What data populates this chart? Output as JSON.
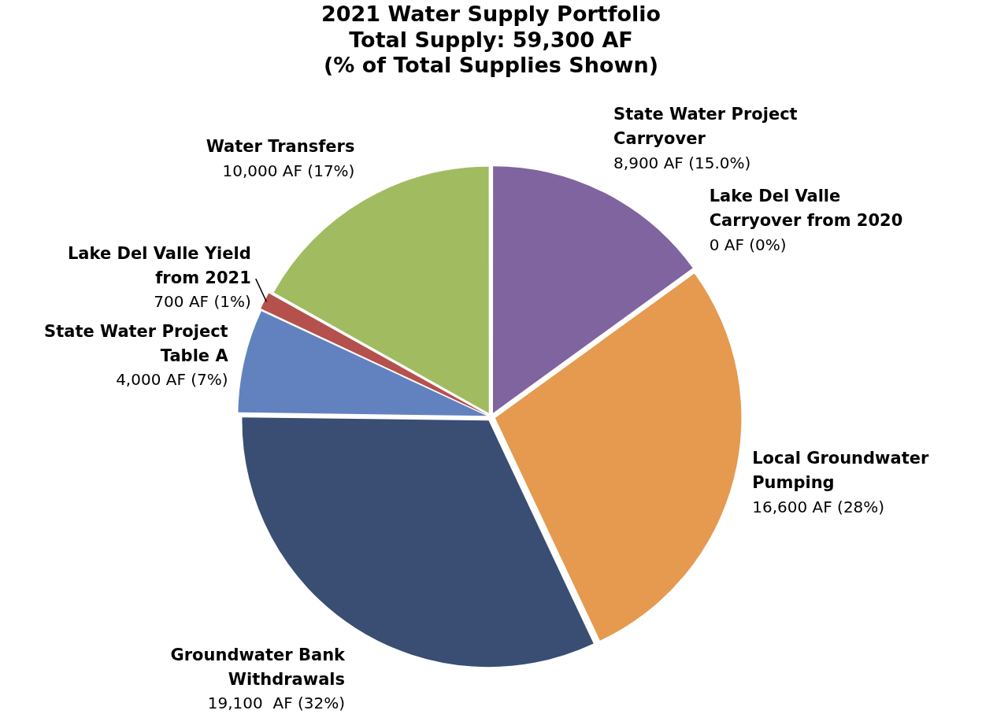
{
  "chart_data": {
    "type": "pie",
    "title": "2021 Water Supply Portfolio",
    "subtitle": "Total Supply: 59,300 AF\n(% of Total Supplies Shown)",
    "categories": [
      "State Water Project Carryover",
      "Lake Del Valle Carryover from 2020",
      "Local Groundwater Pumping",
      "Groundwater Bank Withdrawals",
      "State Water Project Table A",
      "Lake Del Valle Yield from 2021",
      "Water Transfers"
    ],
    "values": [
      8900,
      0,
      16600,
      19100,
      4000,
      700,
      10000
    ],
    "value_labels": [
      "8,900 AF (15.0%)",
      "0 AF (0%)",
      "16,600 AF (28%)",
      "19,100  AF (32%)",
      "4,000 AF (7%)",
      "700 AF (1%)",
      "10,000 AF (17%)"
    ],
    "colors": [
      "#7f64a0",
      "#4bacc6",
      "#e59a4f",
      "#3a4d73",
      "#6282bf",
      "#b5514c",
      "#a1bb61"
    ],
    "legend": false
  }
}
